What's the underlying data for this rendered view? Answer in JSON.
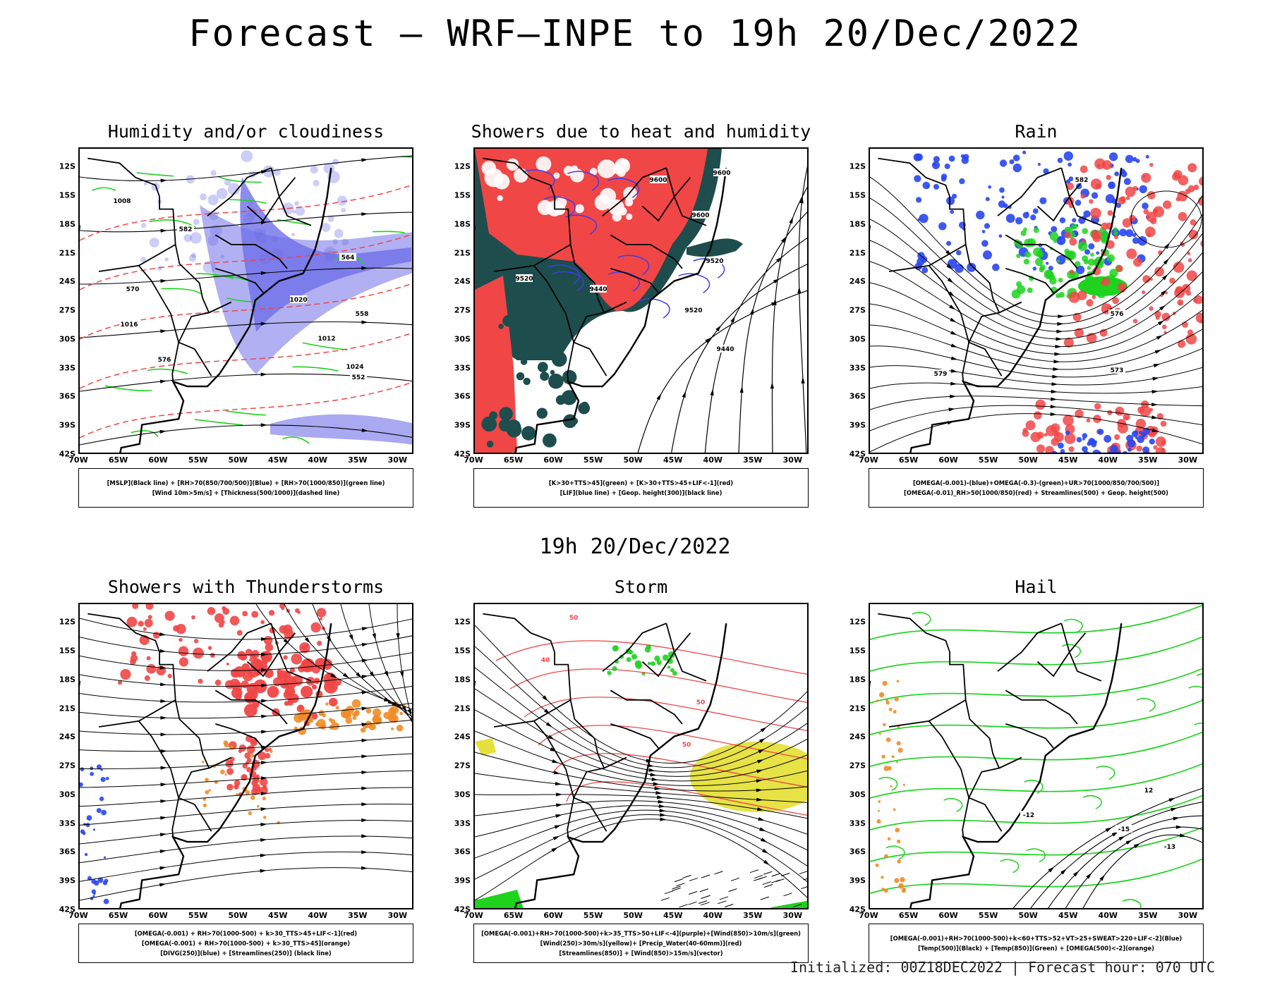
{
  "title": "Forecast – WRF–INPE to 19h 20/Dec/2022",
  "subtitle": "19h 20/Dec/2022",
  "footer": "Initialized: 00Z18DEC2022 | Forecast hour: 070 UTC",
  "colors": {
    "black_line": "#000000",
    "blue_fill": "#6f6fe8",
    "green_line": "#1ed21e",
    "red_line": "#f04646",
    "red_fill": "#f04646",
    "dark_teal": "#1e4d4d",
    "orange": "#f08c28",
    "yellow": "#e6e03c"
  },
  "chart_data": [
    {
      "type": "heatmap",
      "title": "Humidity and/or cloudiness",
      "x_ticks": [
        "70W",
        "65W",
        "60W",
        "55W",
        "50W",
        "45W",
        "40W",
        "35W",
        "30W"
      ],
      "y_ticks": [
        "12S",
        "15S",
        "18S",
        "21S",
        "24S",
        "27S",
        "30S",
        "33S",
        "36S",
        "39S",
        "42S"
      ],
      "xlim": [
        -70,
        -28
      ],
      "ylim": [
        -42,
        -10
      ],
      "legend": [
        "[MSLP](Black line) + [RH>70(850/700/500)](Blue) + [RH>70(1000/850)](green line)",
        "[Wind 10m>5m/s] + [Thickness(500/1000)](dashed line)"
      ],
      "contour_labels": [
        "1008",
        "1012",
        "1016",
        "1020",
        "1024",
        "570",
        "576",
        "582",
        "564",
        "558",
        "552"
      ]
    },
    {
      "type": "heatmap",
      "title": "Showers due to heat and humidity",
      "x_ticks": [
        "70W",
        "65W",
        "60W",
        "55W",
        "50W",
        "45W",
        "40W",
        "35W",
        "30W"
      ],
      "y_ticks": [
        "12S",
        "15S",
        "18S",
        "21S",
        "24S",
        "27S",
        "30S",
        "33S",
        "36S",
        "39S",
        "42S"
      ],
      "xlim": [
        -70,
        -28
      ],
      "ylim": [
        -42,
        -10
      ],
      "legend": [
        "[K>30+TTS>45](green) + [K>30+TTS>45+LIF<-1](red)",
        "[LIF](blue line) + [Geop. height(300)](black line)"
      ],
      "contour_labels": [
        "9600",
        "9520",
        "9440"
      ]
    },
    {
      "type": "heatmap",
      "title": "Rain",
      "x_ticks": [
        "70W",
        "65W",
        "60W",
        "55W",
        "50W",
        "45W",
        "40W",
        "35W",
        "30W"
      ],
      "y_ticks": [
        "12S",
        "15S",
        "18S",
        "21S",
        "24S",
        "27S",
        "30S",
        "33S",
        "36S",
        "39S",
        "42S"
      ],
      "xlim": [
        -70,
        -28
      ],
      "ylim": [
        -42,
        -10
      ],
      "legend": [
        "[OMEGA(-0.001)-(blue)+OMEGA(-0.3)-(green)+UR>70(1000/850/700/500)]",
        "[OMEGA(-0.01)_RH>50(1000/850)(red) + Streamlines(500) + Geop. height(500)"
      ],
      "contour_labels": [
        "582",
        "579",
        "576",
        "573"
      ]
    },
    {
      "type": "heatmap",
      "title": "Showers with Thunderstorms",
      "x_ticks": [
        "70W",
        "65W",
        "60W",
        "55W",
        "50W",
        "45W",
        "40W",
        "35W",
        "30W"
      ],
      "y_ticks": [
        "12S",
        "15S",
        "18S",
        "21S",
        "24S",
        "27S",
        "30S",
        "33S",
        "36S",
        "39S",
        "42S"
      ],
      "xlim": [
        -70,
        -28
      ],
      "ylim": [
        -42,
        -10
      ],
      "legend": [
        "[OMEGA(-0.001) + RH>70(1000-500) + k>30_TTS>45+LIF<-1](red)",
        "[OMEGA(-0.001) + RH>70(1000-500) + k>30_TTS>45](orange)",
        "[DIVG(250)](blue) + [Streamlines(250)] (black line)"
      ],
      "contour_labels": []
    },
    {
      "type": "heatmap",
      "title": "Storm",
      "x_ticks": [
        "70W",
        "65W",
        "60W",
        "55W",
        "50W",
        "45W",
        "40W",
        "35W",
        "30W"
      ],
      "y_ticks": [
        "12S",
        "15S",
        "18S",
        "21S",
        "24S",
        "27S",
        "30S",
        "33S",
        "36S",
        "39S",
        "42S"
      ],
      "xlim": [
        -70,
        -28
      ],
      "ylim": [
        -42,
        -10
      ],
      "legend": [
        "[OMEGA(-0.001)+RH>70(1000-500)+k>35_TTS>50+LIF<-4](purple)+[Wind(850)>10m/s](green)",
        "[Wind(250)>30m/s](yellow)+ [Precip_Water(40-60mm)](red)",
        "[Streamlines(850)] + [Wind(850)>15m/s](vector)"
      ],
      "contour_labels": [
        "50",
        "40"
      ]
    },
    {
      "type": "heatmap",
      "title": "Hail",
      "x_ticks": [
        "70W",
        "65W",
        "60W",
        "55W",
        "50W",
        "45W",
        "40W",
        "35W",
        "30W"
      ],
      "y_ticks": [
        "12S",
        "15S",
        "18S",
        "21S",
        "24S",
        "27S",
        "30S",
        "33S",
        "36S",
        "39S",
        "42S"
      ],
      "xlim": [
        -70,
        -28
      ],
      "ylim": [
        -42,
        -10
      ],
      "legend": [
        "[OMEGA(-0.001)+RH>70(1000-500)+k<60+TTS>52+VT>25+SWEAT>220+LIF<-2](Blue)",
        "[Temp(500)](Black) + [Temp(850)](Green) + [OMEGA(500)<-2](orange)"
      ],
      "contour_labels": [
        "-12",
        "-15",
        "-13",
        "12"
      ]
    }
  ]
}
